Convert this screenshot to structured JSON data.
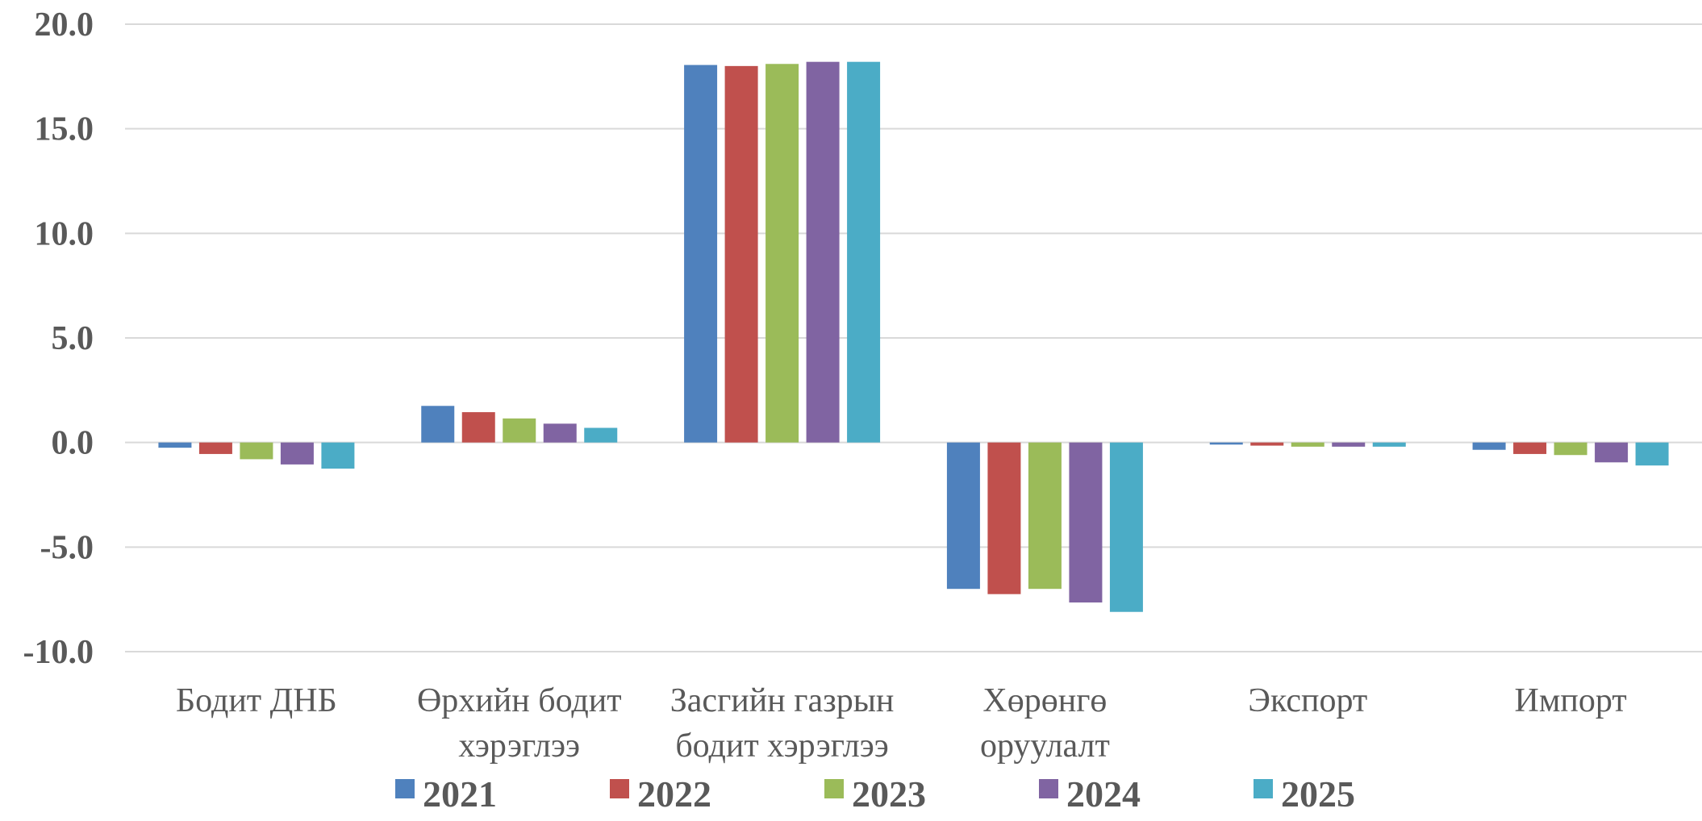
{
  "chart_data": {
    "type": "bar",
    "categories": [
      [
        "Бодит ДНБ"
      ],
      [
        "Өрхийн бодит",
        "хэрэглээ"
      ],
      [
        "Засгийн газрын",
        "бодит хэрэглээ"
      ],
      [
        "Хөрөнгө",
        "оруулалт"
      ],
      [
        "Экспорт"
      ],
      [
        "Импорт"
      ]
    ],
    "series": [
      {
        "name": "2021",
        "color": "#4F81BD",
        "values": [
          -0.25,
          1.75,
          18.05,
          -7.0,
          -0.1,
          -0.35
        ]
      },
      {
        "name": "2022",
        "color": "#C0504D",
        "values": [
          -0.55,
          1.45,
          18.0,
          -7.25,
          -0.15,
          -0.55
        ]
      },
      {
        "name": "2023",
        "color": "#9BBB59",
        "values": [
          -0.8,
          1.15,
          18.1,
          -7.0,
          -0.2,
          -0.6
        ]
      },
      {
        "name": "2024",
        "color": "#8064A2",
        "values": [
          -1.05,
          0.9,
          18.2,
          -7.65,
          -0.2,
          -0.95
        ]
      },
      {
        "name": "2025",
        "color": "#4BACC6",
        "values": [
          -1.25,
          0.7,
          18.2,
          -8.1,
          -0.2,
          -1.1
        ]
      }
    ],
    "yticks": [
      "20.0",
      "15.0",
      "10.0",
      "5.0",
      "0.0",
      "-5.0",
      "-10.0"
    ],
    "ylim": [
      -10,
      20
    ],
    "grid": true,
    "legend_position": "bottom"
  }
}
